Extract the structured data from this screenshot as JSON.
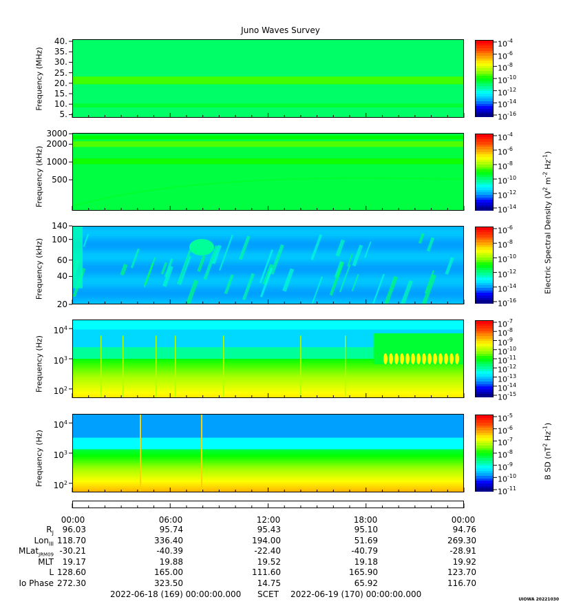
{
  "title": "Juno Waves Survey",
  "colors": {
    "background_mid": "#20f0c0",
    "colormap": [
      "#00008b",
      "#0000ff",
      "#00a0ff",
      "#00ffff",
      "#00ff80",
      "#00ff00",
      "#a0ff00",
      "#ffff00",
      "#ffa000",
      "#ff4000",
      "#ff0000"
    ]
  },
  "chart_data": [
    {
      "type": "heatmap",
      "ylabel": "Frequency (MHz)",
      "yticks": [
        "40.",
        "35.",
        "30.",
        "25.",
        "20.",
        "15.",
        "10.",
        "5."
      ],
      "ylim": [
        3.5,
        41
      ],
      "yscale": "linear",
      "clabels": [
        "10-4",
        "10-6",
        "10-8",
        "10-10",
        "10-12",
        "10-14",
        "10-16"
      ],
      "clim": [
        -17,
        -4
      ],
      "bands": [
        {
          "freq": 21.5,
          "level": -11
        },
        {
          "freq": 9,
          "level": -12.5
        }
      ]
    },
    {
      "type": "heatmap",
      "ylabel": "Frequency (kHz)",
      "yticks": [
        "3000",
        "2000",
        "1000",
        "500"
      ],
      "ylim": [
        150,
        3100
      ],
      "yscale": "log",
      "clabels": [
        "10-4",
        "10-6",
        "10-8",
        "10-10",
        "10-12",
        "10-14"
      ],
      "clim": [
        -15,
        -3
      ],
      "bands": [
        {
          "freq": 2000,
          "level": -11
        },
        {
          "freq": 1000,
          "level": -11.5
        },
        {
          "freq": 2600,
          "level": -11.5
        }
      ]
    },
    {
      "type": "heatmap",
      "ylabel": "Frequency (kHz)",
      "yticks": [
        "140",
        "100",
        "60",
        "40",
        "20"
      ],
      "ylim": [
        20,
        140
      ],
      "yscale": "log",
      "clabels": [
        "10-6",
        "10-8",
        "10-10",
        "10-12",
        "10-14",
        "10-16"
      ],
      "clim": [
        -17,
        -6
      ],
      "bands": []
    },
    {
      "type": "heatmap",
      "ylabel": "Frequency (Hz)",
      "yticks": [
        "10^4",
        "10^3",
        "10^2"
      ],
      "ylim": [
        50,
        20000
      ],
      "yscale": "log",
      "clabels": [
        "10-7",
        "10-8",
        "10-9",
        "10-10",
        "10-11",
        "10-12",
        "10-13",
        "10-14",
        "10-15"
      ],
      "clim": [
        -15,
        -7
      ],
      "bands": []
    },
    {
      "type": "heatmap",
      "ylabel": "Frequency (Hz)",
      "yticks": [
        "10^4",
        "10^3",
        "10^2"
      ],
      "ylim": [
        50,
        20000
      ],
      "yscale": "log",
      "clabels": [
        "10-5",
        "10-6",
        "10-7",
        "10-8",
        "10-9",
        "10-10",
        "10-11"
      ],
      "clim": [
        -11,
        -4.5
      ],
      "bands": []
    }
  ],
  "colorbar_titles": {
    "electric": "Electric Spectral Density (V2 m-2 Hz-1)",
    "magnetic": "B SD (nT2 Hz-1)"
  },
  "time_axis": {
    "labels": [
      "00:00",
      "06:00",
      "12:00",
      "18:00",
      "00:00"
    ]
  },
  "ephemeris": [
    {
      "label": "Rj",
      "values": [
        "96.03",
        "95.74",
        "95.43",
        "95.10",
        "94.76"
      ]
    },
    {
      "label": "LonIII",
      "values": [
        "118.70",
        "336.40",
        "194.00",
        "51.69",
        "269.30"
      ]
    },
    {
      "label": "MLatJRM09",
      "values": [
        "-30.21",
        "-40.39",
        "-22.40",
        "-40.79",
        "-28.91"
      ]
    },
    {
      "label": "MLT",
      "values": [
        "19.17",
        "19.88",
        "19.52",
        "19.18",
        "19.92"
      ]
    },
    {
      "label": "L",
      "values": [
        "128.60",
        "165.00",
        "111.60",
        "165.90",
        "123.70"
      ]
    },
    {
      "label": "Io Phase",
      "values": [
        "272.30",
        "323.50",
        "14.75",
        "65.92",
        "116.70"
      ]
    }
  ],
  "footer": {
    "start": "2022-06-18 (169) 00:00:00.000",
    "scet": "SCET",
    "end": "2022-06-19 (170) 00:00:00.000"
  },
  "stamp": "UIOWA 20221030"
}
